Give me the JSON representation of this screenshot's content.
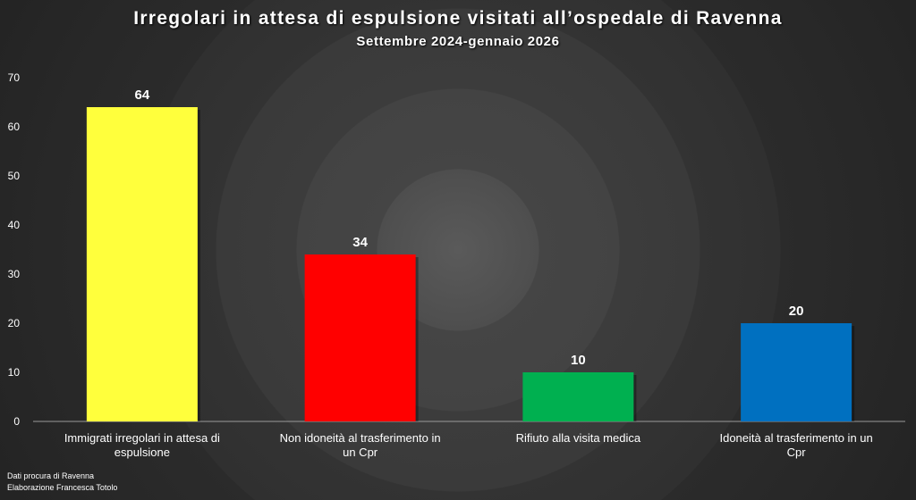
{
  "chart_data": {
    "type": "bar",
    "title": "Irregolari in attesa di espulsione visitati all’ospedale di Ravenna",
    "subtitle": "Settembre 2024-gennaio 2026",
    "categories": [
      "Immigrati irregolari in attesa di espulsione",
      "Non idoneità al trasferimento in un Cpr",
      "Rifiuto alla visita medica",
      "Idoneità al trasferimento in un Cpr"
    ],
    "values": [
      64,
      34,
      10,
      20
    ],
    "colors": [
      "#ffff3c",
      "#ff0000",
      "#00b050",
      "#0070c0"
    ],
    "xlabel": "",
    "ylabel": "",
    "ylim": [
      0,
      70
    ],
    "yticks": [
      0,
      10,
      20,
      30,
      40,
      50,
      60,
      70
    ],
    "grid": false,
    "data_labels": true
  },
  "source": "Dati procura di Ravenna",
  "credit": "Elaborazione Francesca Totolo"
}
